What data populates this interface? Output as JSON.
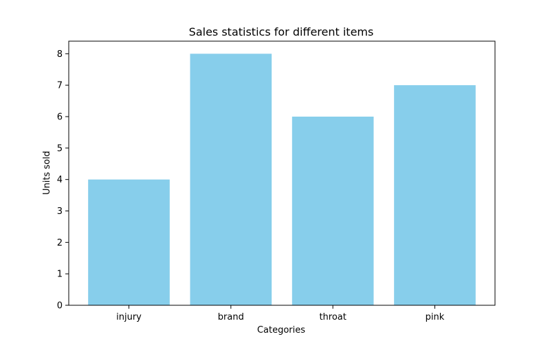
{
  "chart_data": {
    "type": "bar",
    "title": "Sales statistics for different items",
    "xlabel": "Categories",
    "ylabel": "Units sold",
    "categories": [
      "injury",
      "brand",
      "throat",
      "pink"
    ],
    "values": [
      4,
      8,
      6,
      7
    ],
    "ylim": [
      0,
      8.4
    ],
    "yticks": [
      0,
      1,
      2,
      3,
      4,
      5,
      6,
      7,
      8
    ],
    "grid": false,
    "bar_color": "#87ceeb"
  }
}
